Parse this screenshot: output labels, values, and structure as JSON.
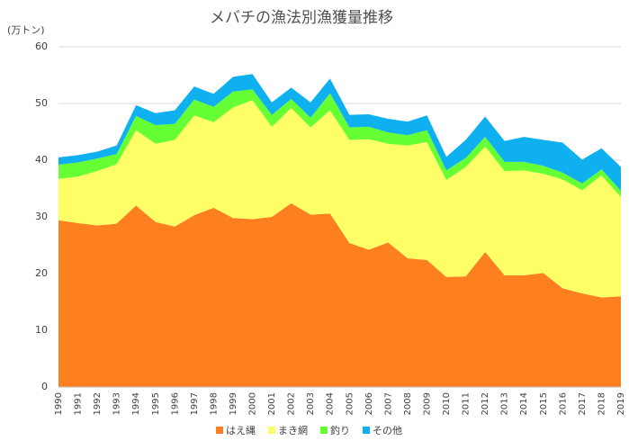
{
  "chart_data": {
    "type": "stacked_area",
    "title": "メバチの漁法別漁獲量推移",
    "y_axis_label": "(万トン)",
    "categories": [
      "1990",
      "1991",
      "1992",
      "1993",
      "1994",
      "1995",
      "1996",
      "1997",
      "1998",
      "1999",
      "2000",
      "2001",
      "2002",
      "2003",
      "2004",
      "2005",
      "2006",
      "2007",
      "2008",
      "2009",
      "2010",
      "2011",
      "2012",
      "2013",
      "2014",
      "2015",
      "2016",
      "2017",
      "2018",
      "2019"
    ],
    "series": [
      {
        "name": "はえ縄",
        "color": "#fd7f1f",
        "values": [
          29.4,
          28.9,
          28.5,
          28.8,
          32.0,
          29.1,
          28.3,
          30.3,
          31.6,
          29.8,
          29.6,
          30.0,
          32.4,
          30.4,
          30.6,
          25.4,
          24.2,
          25.5,
          22.7,
          22.4,
          19.4,
          19.5,
          23.8,
          19.7,
          19.7,
          20.1,
          17.4,
          16.5,
          15.8,
          16.0
        ]
      },
      {
        "name": "まき網",
        "color": "#ffff66",
        "values": [
          7.3,
          8.2,
          9.6,
          10.5,
          13.3,
          13.8,
          15.3,
          17.6,
          15.1,
          19.5,
          21.0,
          15.9,
          16.8,
          15.4,
          18.2,
          18.2,
          19.5,
          17.4,
          19.9,
          20.8,
          17.1,
          19.3,
          18.6,
          18.4,
          18.5,
          17.5,
          19.2,
          18.2,
          21.5,
          17.5
        ]
      },
      {
        "name": "釣り",
        "color": "#66ff33",
        "values": [
          2.5,
          2.5,
          2.2,
          1.8,
          2.5,
          3.3,
          2.8,
          2.8,
          2.7,
          2.8,
          1.9,
          2.1,
          1.6,
          1.7,
          3.0,
          2.2,
          2.2,
          2.0,
          1.8,
          2.1,
          1.7,
          1.6,
          1.7,
          1.6,
          1.5,
          1.4,
          1.2,
          1.2,
          1.1,
          1.1
        ]
      },
      {
        "name": "その他",
        "color": "#0fb0f0",
        "values": [
          1.3,
          1.3,
          1.2,
          1.5,
          1.9,
          2.1,
          2.4,
          2.3,
          2.3,
          2.6,
          2.7,
          2.2,
          2.0,
          2.7,
          2.6,
          2.2,
          2.2,
          2.4,
          2.4,
          2.6,
          2.4,
          3.2,
          3.6,
          3.7,
          4.4,
          4.6,
          5.3,
          4.2,
          3.7,
          4.2
        ]
      }
    ],
    "ylim": [
      0,
      60
    ],
    "yticks": [
      0,
      10,
      20,
      30,
      40,
      50,
      60
    ],
    "grid": true,
    "legend": "bottom"
  }
}
